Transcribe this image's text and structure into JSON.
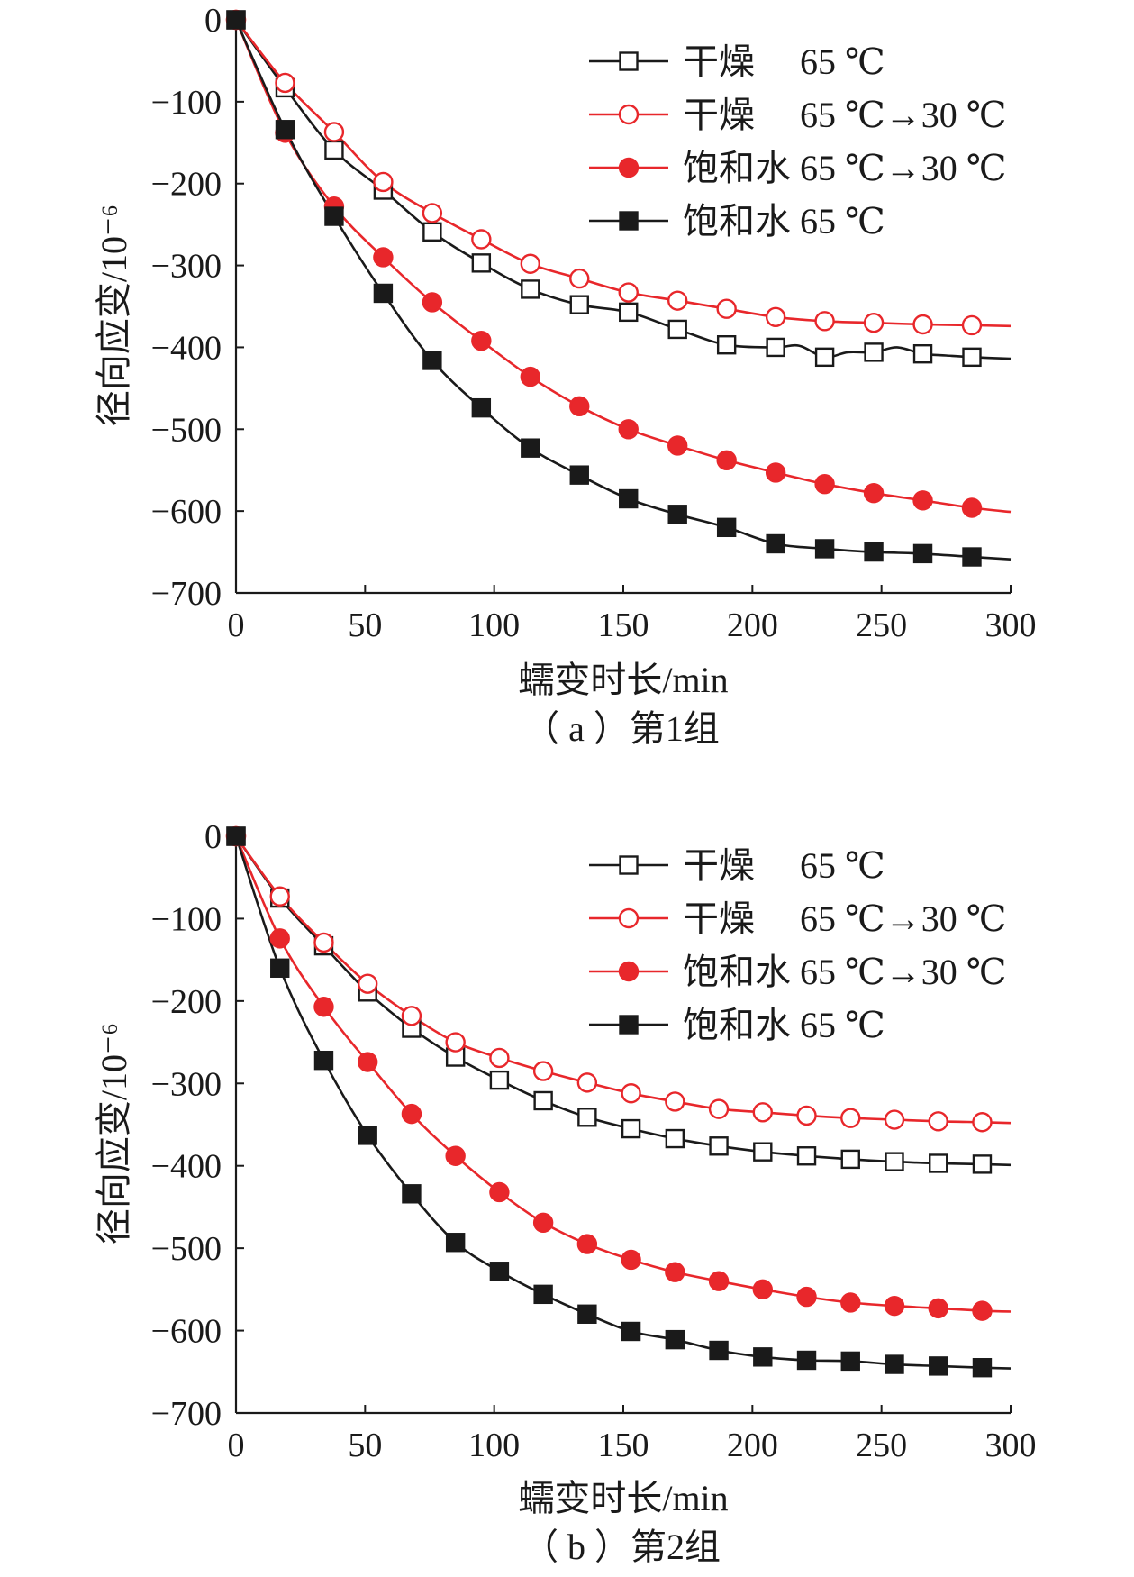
{
  "colors": {
    "dark": "#1a1a1a",
    "red": "#e8272b"
  },
  "chart_data": [
    {
      "type": "line",
      "caption": "（ a ）第1组",
      "xlabel": "蠕变时长/min",
      "ylabel": "径向应变/10⁻⁶",
      "xlim": [
        0,
        300
      ],
      "ylim": [
        -700,
        0
      ],
      "xticks": [
        0,
        50,
        100,
        150,
        200,
        250,
        300
      ],
      "yticks": [
        0,
        -100,
        -200,
        -300,
        -400,
        -500,
        -600,
        -700
      ],
      "legend_position": "top-right",
      "series": [
        {
          "name": "干燥　 65 ℃",
          "marker": "square-open",
          "color": "#1a1a1a",
          "x": [
            0,
            19,
            38,
            57,
            76,
            95,
            114,
            133,
            152,
            171,
            190,
            209,
            228,
            247,
            266,
            285
          ],
          "y": [
            0,
            -83,
            -159,
            -208,
            -259,
            -297,
            -329,
            -348,
            -357,
            -378,
            -397,
            -400,
            -412,
            -406,
            -408,
            -412
          ],
          "curve_x": [
            0,
            19,
            38,
            57,
            76,
            95,
            114,
            133,
            152,
            171,
            190,
            209,
            218,
            228,
            237,
            247,
            256,
            266,
            275,
            285,
            300
          ],
          "curve_y": [
            0,
            -83,
            -159,
            -208,
            -259,
            -297,
            -329,
            -348,
            -357,
            -378,
            -397,
            -400,
            -398,
            -412,
            -406,
            -406,
            -400,
            -408,
            -410,
            -412,
            -414
          ]
        },
        {
          "name": "干燥　 65 ℃→30 ℃",
          "marker": "circle-open",
          "color": "#e8272b",
          "x": [
            0,
            19,
            38,
            57,
            76,
            95,
            114,
            133,
            152,
            171,
            190,
            209,
            228,
            247,
            266,
            285
          ],
          "y": [
            0,
            -77,
            -137,
            -198,
            -236,
            -268,
            -298,
            -316,
            -333,
            -343,
            -353,
            -363,
            -368,
            -370,
            -372,
            -373
          ],
          "curve_x": [
            0,
            19,
            38,
            57,
            76,
            95,
            114,
            133,
            152,
            171,
            190,
            209,
            228,
            247,
            266,
            285,
            300
          ],
          "curve_y": [
            0,
            -77,
            -137,
            -198,
            -236,
            -268,
            -298,
            -316,
            -333,
            -343,
            -353,
            -363,
            -368,
            -370,
            -372,
            -373,
            -374
          ]
        },
        {
          "name": "饱和水 65 ℃→30 ℃",
          "marker": "circle-filled",
          "color": "#e8272b",
          "x": [
            0,
            19,
            38,
            57,
            76,
            95,
            114,
            133,
            152,
            171,
            190,
            209,
            228,
            247,
            266,
            285
          ],
          "y": [
            0,
            -138,
            -228,
            -290,
            -345,
            -392,
            -436,
            -472,
            -500,
            -520,
            -538,
            -553,
            -567,
            -578,
            -587,
            -596
          ],
          "curve_x": [
            0,
            19,
            38,
            57,
            76,
            95,
            114,
            133,
            152,
            171,
            190,
            209,
            228,
            247,
            266,
            285,
            300
          ],
          "curve_y": [
            0,
            -138,
            -228,
            -290,
            -345,
            -392,
            -436,
            -472,
            -500,
            -520,
            -538,
            -553,
            -567,
            -578,
            -587,
            -596,
            -601
          ]
        },
        {
          "name": "饱和水 65 ℃",
          "marker": "square-filled",
          "color": "#1a1a1a",
          "x": [
            0,
            19,
            38,
            57,
            76,
            95,
            114,
            133,
            152,
            171,
            190,
            209,
            228,
            247,
            266,
            285
          ],
          "y": [
            0,
            -134,
            -240,
            -334,
            -416,
            -474,
            -523,
            -556,
            -585,
            -604,
            -620,
            -640,
            -646,
            -650,
            -652,
            -656
          ],
          "curve_x": [
            0,
            19,
            38,
            57,
            76,
            95,
            114,
            133,
            152,
            171,
            190,
            209,
            228,
            247,
            266,
            285,
            300
          ],
          "curve_y": [
            0,
            -134,
            -240,
            -334,
            -416,
            -474,
            -523,
            -556,
            -585,
            -604,
            -620,
            -640,
            -646,
            -650,
            -652,
            -656,
            -659
          ]
        }
      ]
    },
    {
      "type": "line",
      "caption": "（ b ）第2组",
      "xlabel": "蠕变时长/min",
      "ylabel": "径向应变/10⁻⁶",
      "xlim": [
        0,
        300
      ],
      "ylim": [
        -700,
        0
      ],
      "xticks": [
        0,
        50,
        100,
        150,
        200,
        250,
        300
      ],
      "yticks": [
        0,
        -100,
        -200,
        -300,
        -400,
        -500,
        -600,
        -700
      ],
      "legend_position": "top-right",
      "series": [
        {
          "name": "干燥　 65 ℃",
          "marker": "square-open",
          "color": "#1a1a1a",
          "x": [
            0,
            17,
            34,
            51,
            68,
            85,
            102,
            119,
            136,
            153,
            170,
            187,
            204,
            221,
            238,
            255,
            272,
            289
          ],
          "y": [
            0,
            -75,
            -133,
            -189,
            -233,
            -268,
            -296,
            -321,
            -341,
            -355,
            -367,
            -376,
            -383,
            -388,
            -392,
            -395,
            -397,
            -398
          ],
          "curve_x": [
            0,
            17,
            34,
            51,
            68,
            85,
            102,
            119,
            136,
            153,
            170,
            187,
            204,
            221,
            238,
            255,
            272,
            289,
            300
          ],
          "curve_y": [
            0,
            -75,
            -133,
            -189,
            -233,
            -268,
            -296,
            -321,
            -341,
            -355,
            -367,
            -376,
            -383,
            -388,
            -392,
            -395,
            -397,
            -398,
            -399
          ]
        },
        {
          "name": "干燥　 65 ℃→30 ℃",
          "marker": "circle-open",
          "color": "#e8272b",
          "x": [
            0,
            17,
            34,
            51,
            68,
            85,
            102,
            119,
            136,
            153,
            170,
            187,
            204,
            221,
            238,
            255,
            272,
            289
          ],
          "y": [
            0,
            -73,
            -129,
            -179,
            -218,
            -250,
            -269,
            -285,
            -299,
            -312,
            -322,
            -331,
            -335,
            -339,
            -342,
            -344,
            -346,
            -347
          ],
          "curve_x": [
            0,
            17,
            34,
            51,
            68,
            85,
            102,
            119,
            136,
            153,
            170,
            187,
            204,
            221,
            238,
            255,
            272,
            289,
            300
          ],
          "curve_y": [
            0,
            -73,
            -129,
            -179,
            -218,
            -250,
            -269,
            -285,
            -299,
            -312,
            -322,
            -331,
            -335,
            -339,
            -342,
            -344,
            -346,
            -347,
            -348
          ]
        },
        {
          "name": "饱和水 65 ℃→30 ℃",
          "marker": "circle-filled",
          "color": "#e8272b",
          "x": [
            0,
            17,
            34,
            51,
            68,
            85,
            102,
            119,
            136,
            153,
            170,
            187,
            204,
            221,
            238,
            255,
            272,
            289
          ],
          "y": [
            0,
            -124,
            -207,
            -274,
            -337,
            -388,
            -432,
            -469,
            -495,
            -514,
            -529,
            -540,
            -550,
            -559,
            -566,
            -570,
            -573,
            -576
          ],
          "curve_x": [
            0,
            17,
            34,
            51,
            68,
            85,
            102,
            119,
            136,
            153,
            170,
            187,
            204,
            221,
            238,
            255,
            272,
            289,
            300
          ],
          "curve_y": [
            0,
            -124,
            -207,
            -274,
            -337,
            -388,
            -432,
            -469,
            -495,
            -514,
            -529,
            -540,
            -550,
            -559,
            -566,
            -570,
            -573,
            -576,
            -577
          ]
        },
        {
          "name": "饱和水 65 ℃",
          "marker": "square-filled",
          "color": "#1a1a1a",
          "x": [
            0,
            17,
            34,
            51,
            68,
            85,
            102,
            119,
            136,
            153,
            170,
            187,
            204,
            221,
            238,
            255,
            272,
            289
          ],
          "y": [
            0,
            -160,
            -272,
            -363,
            -434,
            -493,
            -528,
            -556,
            -580,
            -601,
            -611,
            -624,
            -632,
            -636,
            -637,
            -641,
            -643,
            -645
          ],
          "curve_x": [
            0,
            17,
            34,
            51,
            68,
            85,
            102,
            119,
            136,
            153,
            170,
            187,
            204,
            221,
            238,
            255,
            272,
            289,
            300
          ],
          "curve_y": [
            0,
            -160,
            -272,
            -363,
            -434,
            -493,
            -528,
            -556,
            -580,
            -601,
            -611,
            -624,
            -632,
            -636,
            -637,
            -641,
            -643,
            -645,
            -646
          ]
        }
      ]
    }
  ]
}
